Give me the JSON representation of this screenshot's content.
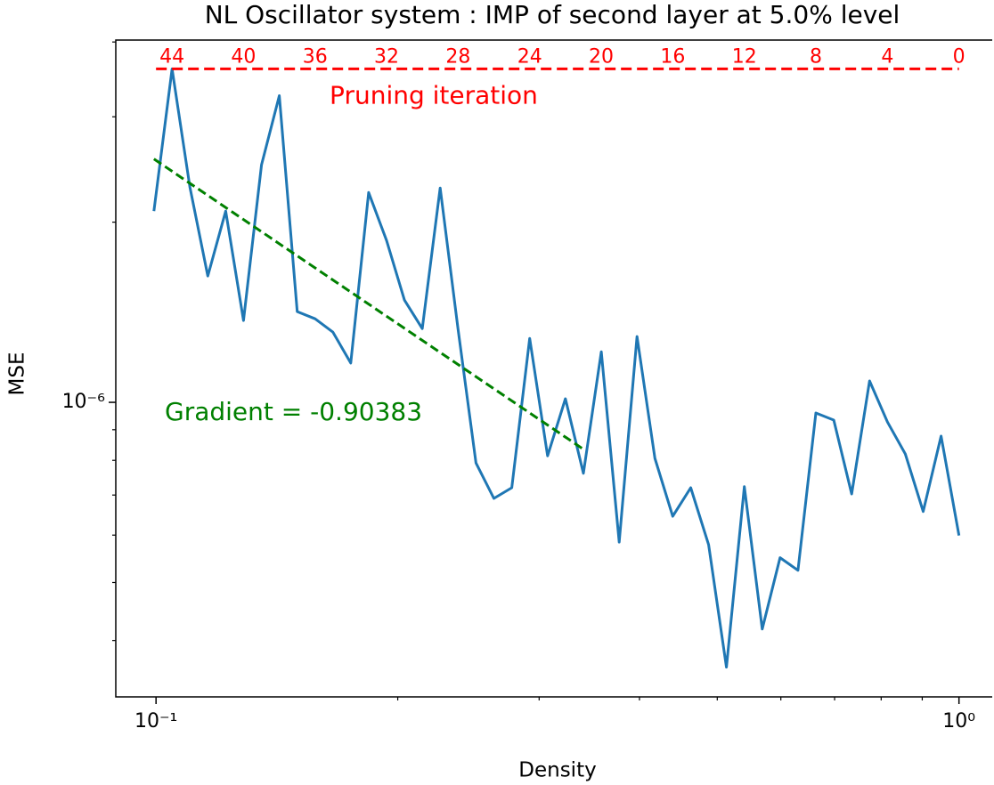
{
  "chart_data": {
    "type": "line",
    "title": "NL Oscillator system : IMP of second layer at 5.0% level",
    "x_label": "Density",
    "y_label": "MSE",
    "x_scale": "log",
    "y_scale": "log",
    "xlim": [
      0.0891,
      1.1
    ],
    "ylim": [
      3.22e-07,
      4.03e-06
    ],
    "xticks": [
      {
        "value": 0.1,
        "label": "10⁻¹"
      },
      {
        "value": 1,
        "label": "10⁰"
      }
    ],
    "xminor": [
      0.2,
      0.3,
      0.4,
      0.5,
      0.6,
      0.7,
      0.8,
      0.9
    ],
    "yticks": [
      {
        "value": 1e-06,
        "label": "10⁻⁶"
      }
    ],
    "yminor": [
      4e-07,
      5e-07,
      6e-07,
      7e-07,
      8e-07,
      9e-07,
      2e-06,
      3e-06,
      4e-06
    ],
    "x": [
      0.0994,
      0.1047,
      0.1102,
      0.116,
      0.1221,
      0.1285,
      0.1353,
      0.1424,
      0.1499,
      0.1578,
      0.1661,
      0.1748,
      0.184,
      0.1937,
      0.2039,
      0.2146,
      0.2259,
      0.2378,
      0.2503,
      0.2635,
      0.2774,
      0.292,
      0.3074,
      0.3235,
      0.3406,
      0.3585,
      0.3774,
      0.3972,
      0.4181,
      0.4401,
      0.4633,
      0.4877,
      0.5133,
      0.5404,
      0.5688,
      0.5987,
      0.6302,
      0.6634,
      0.6983,
      0.7351,
      0.7738,
      0.8145,
      0.8574,
      0.9025,
      0.95,
      1
    ],
    "series": [
      {
        "color": "#1f77b4",
        "values": [
          2.087e-06,
          3.607e-06,
          2.289e-06,
          1.626e-06,
          2.087e-06,
          1.37e-06,
          2.493e-06,
          3.254e-06,
          1.418e-06,
          1.379e-06,
          1.31e-06,
          1.163e-06,
          2.242e-06,
          1.864e-06,
          1.482e-06,
          1.328e-06,
          2.281e-06,
          1.324e-06,
          7.92e-07,
          6.91e-07,
          7.2e-07,
          1.279e-06,
          8.14e-07,
          1.014e-06,
          7.61e-07,
          1.215e-06,
          5.84e-07,
          1.288e-06,
          8.06e-07,
          6.45e-07,
          7.2e-07,
          5.78e-07,
          3.61e-07,
          7.23e-07,
          4.18e-07,
          5.5e-07,
          5.24e-07,
          9.6e-07,
          9.34e-07,
          7.03e-07,
          1.086e-06,
          9.27e-07,
          8.2e-07,
          6.57e-07,
          8.78e-07,
          5.99e-07
        ]
      }
    ],
    "fit_line": {
      "x": [
        0.0994,
        0.341
      ],
      "y": [
        2.55e-06,
        8.34e-07
      ],
      "color": "green",
      "label": "Gradient = -0.90383"
    },
    "pruning_line": {
      "x": [
        0.1,
        1
      ],
      "y": 3.607e-06,
      "color": "red",
      "label": "Pruning iteration",
      "ticks": [
        {
          "value": 0.1047,
          "label": "44"
        },
        {
          "value": 0.1285,
          "label": "40"
        },
        {
          "value": 0.1578,
          "label": "36"
        },
        {
          "value": 0.1937,
          "label": "32"
        },
        {
          "value": 0.2378,
          "label": "28"
        },
        {
          "value": 0.292,
          "label": "24"
        },
        {
          "value": 0.3585,
          "label": "20"
        },
        {
          "value": 0.4401,
          "label": "16"
        },
        {
          "value": 0.5404,
          "label": "12"
        },
        {
          "value": 0.6634,
          "label": "8"
        },
        {
          "value": 0.8145,
          "label": "4"
        },
        {
          "value": 1,
          "label": "0"
        }
      ]
    }
  }
}
